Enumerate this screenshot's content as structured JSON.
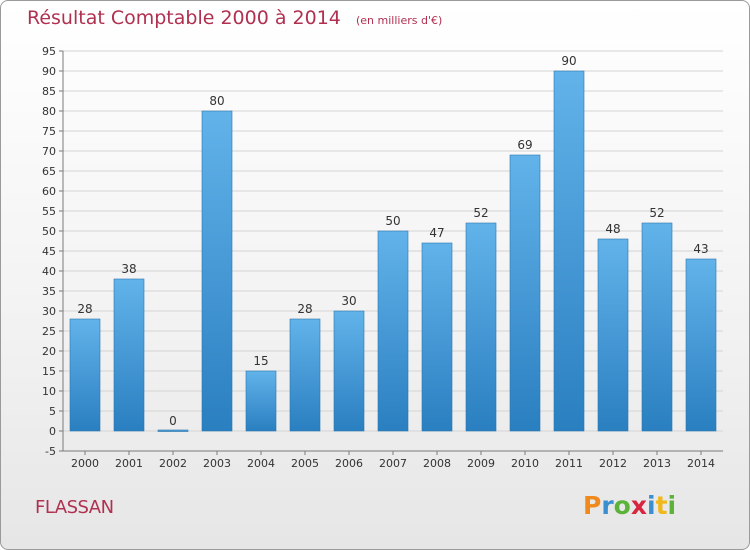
{
  "title": "Résultat Comptable 2000 à 2014",
  "subtitle": "(en milliers d'€)",
  "place": "FLASSAN",
  "brand": "Proxiti",
  "colors": {
    "title": "#b03050",
    "bar_light": "#62b3ea",
    "bar_dark": "#2a7fc0",
    "grid": "#d4d4d4",
    "axis": "#7a7a7a"
  },
  "chart_data": {
    "type": "bar",
    "title": "Résultat Comptable 2000 à 2014",
    "subtitle": "(en milliers d'€)",
    "xlabel": "",
    "ylabel": "",
    "categories": [
      "2000",
      "2001",
      "2002",
      "2003",
      "2004",
      "2005",
      "2006",
      "2007",
      "2008",
      "2009",
      "2010",
      "2011",
      "2012",
      "2013",
      "2014"
    ],
    "values": [
      28,
      38,
      0,
      80,
      15,
      28,
      30,
      50,
      47,
      52,
      69,
      90,
      48,
      52,
      43
    ],
    "data_labels": [
      "28",
      "38",
      "0",
      "80",
      "15",
      "28",
      "30",
      "50",
      "47",
      "52",
      "69",
      "90",
      "48",
      "52",
      "43"
    ],
    "ylim": [
      -5,
      95
    ],
    "y_ticks": [
      -5,
      0,
      5,
      10,
      15,
      20,
      25,
      30,
      35,
      40,
      45,
      50,
      55,
      60,
      65,
      70,
      75,
      80,
      85,
      90,
      95
    ],
    "grid": true,
    "legend": "none"
  }
}
